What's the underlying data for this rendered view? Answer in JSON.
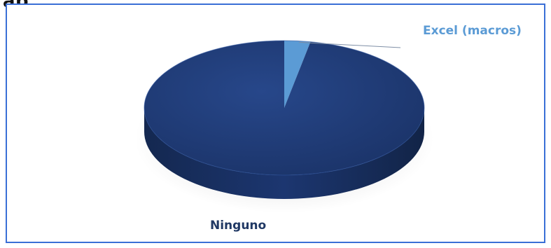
{
  "header": {
    "clipped_title": "ap"
  },
  "colors": {
    "ninguno": "#1f3b73",
    "ninguno_side": "#172d58",
    "excel": "#5b9bd5",
    "border": "#3a6fd6"
  },
  "chart_data": {
    "type": "pie",
    "pie_style": "3d",
    "labels": [
      "Excel (macros)",
      "Ninguno"
    ],
    "values": [
      3,
      97
    ],
    "title": "",
    "legend": "none",
    "data_label_placement": "outside-slices"
  }
}
